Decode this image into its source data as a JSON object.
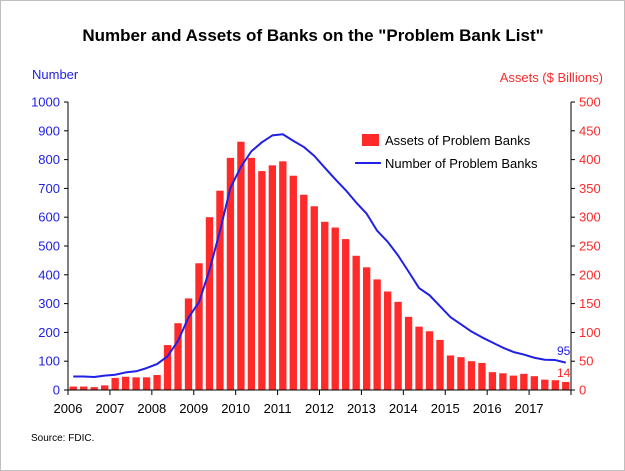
{
  "chart_data": {
    "type": "bar",
    "title": "Number and Assets of Banks on the \"Problem Bank List\"",
    "ylabel_left": "Number",
    "ylabel_right": "Assets ($ Billions)",
    "source": "Source:  FDIC.",
    "ylim_left": [
      0,
      1000
    ],
    "ylim_right": [
      0,
      500
    ],
    "yticks_left": [
      "0",
      "100",
      "200",
      "300",
      "400",
      "500",
      "600",
      "700",
      "800",
      "900",
      "1000"
    ],
    "yticks_right": [
      "0",
      "50",
      "100",
      "150",
      "200",
      "250",
      "300",
      "350",
      "400",
      "450",
      "500"
    ],
    "xticks": [
      "2006",
      "2007",
      "2008",
      "2009",
      "2010",
      "2011",
      "2012",
      "2013",
      "2014",
      "2015",
      "2016",
      "2017"
    ],
    "xlim": [
      2006,
      2018
    ],
    "grid": false,
    "legend_position": "top-right",
    "colors": {
      "bars": "#ff2a2a",
      "line": "#2020e6",
      "left_axis": "#2020e6",
      "right_axis": "#ff2a2a"
    },
    "series": [
      {
        "name": "Assets of Problem Banks",
        "type": "bar",
        "axis": "right",
        "x": [
          "2006Q1",
          "2006Q2",
          "2006Q3",
          "2006Q4",
          "2007Q1",
          "2007Q2",
          "2007Q3",
          "2007Q4",
          "2008Q1",
          "2008Q2",
          "2008Q3",
          "2008Q4",
          "2009Q1",
          "2009Q2",
          "2009Q3",
          "2009Q4",
          "2010Q1",
          "2010Q2",
          "2010Q3",
          "2010Q4",
          "2011Q1",
          "2011Q2",
          "2011Q3",
          "2011Q4",
          "2012Q1",
          "2012Q2",
          "2012Q3",
          "2012Q4",
          "2013Q1",
          "2013Q2",
          "2013Q3",
          "2013Q4",
          "2014Q1",
          "2014Q2",
          "2014Q3",
          "2014Q4",
          "2015Q1",
          "2015Q2",
          "2015Q3",
          "2015Q4",
          "2016Q1",
          "2016Q2",
          "2016Q3",
          "2016Q4",
          "2017Q1",
          "2017Q2",
          "2017Q3",
          "2017Q4"
        ],
        "values": [
          6,
          6,
          5,
          8,
          21,
          23,
          22,
          22,
          26,
          78,
          116,
          159,
          220,
          300,
          346,
          403,
          431,
          403,
          380,
          390,
          397,
          372,
          339,
          319,
          292,
          282,
          262,
          233,
          213,
          192,
          171,
          153,
          127,
          110,
          102,
          87,
          60,
          57,
          50,
          47,
          31,
          29,
          25,
          28,
          24,
          18,
          17,
          14
        ]
      },
      {
        "name": "Number of Problem Banks",
        "type": "line",
        "axis": "left",
        "x": [
          "2006Q1",
          "2006Q2",
          "2006Q3",
          "2006Q4",
          "2007Q1",
          "2007Q2",
          "2007Q3",
          "2007Q4",
          "2008Q1",
          "2008Q2",
          "2008Q3",
          "2008Q4",
          "2009Q1",
          "2009Q2",
          "2009Q3",
          "2009Q4",
          "2010Q1",
          "2010Q2",
          "2010Q3",
          "2010Q4",
          "2011Q1",
          "2011Q2",
          "2011Q3",
          "2011Q4",
          "2012Q1",
          "2012Q2",
          "2012Q3",
          "2012Q4",
          "2013Q1",
          "2013Q2",
          "2013Q3",
          "2013Q4",
          "2014Q1",
          "2014Q2",
          "2014Q3",
          "2014Q4",
          "2015Q1",
          "2015Q2",
          "2015Q3",
          "2015Q4",
          "2016Q1",
          "2016Q2",
          "2016Q3",
          "2016Q4",
          "2017Q1",
          "2017Q2",
          "2017Q3",
          "2017Q4"
        ],
        "values": [
          47,
          47,
          45,
          50,
          53,
          61,
          65,
          76,
          90,
          117,
          171,
          252,
          305,
          416,
          552,
          702,
          775,
          829,
          860,
          884,
          888,
          865,
          844,
          813,
          772,
          732,
          694,
          651,
          612,
          553,
          515,
          467,
          411,
          354,
          329,
          291,
          253,
          228,
          203,
          183,
          165,
          147,
          132,
          123,
          112,
          105,
          104,
          95
        ]
      }
    ],
    "annotations": [
      {
        "series": "Number of Problem Banks",
        "label": "95"
      },
      {
        "series": "Assets of Problem Banks",
        "label": "14"
      }
    ]
  }
}
